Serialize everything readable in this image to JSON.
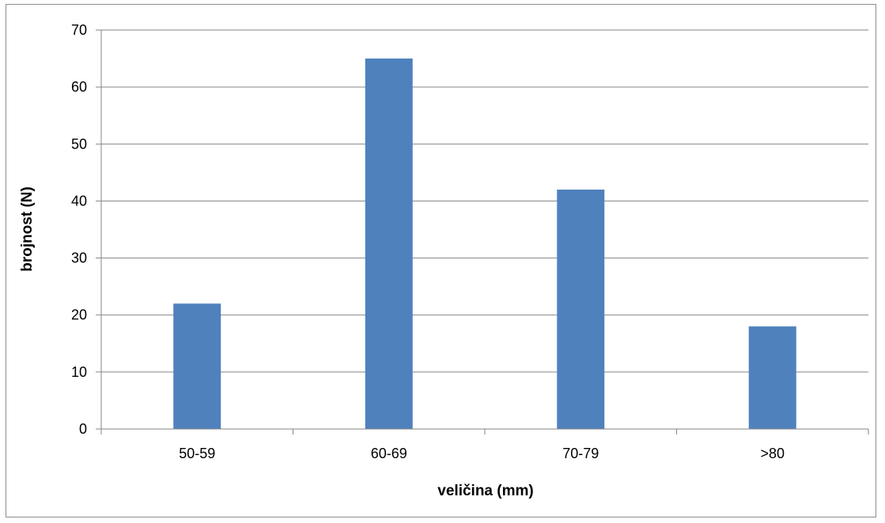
{
  "chart_data": {
    "type": "bar",
    "categories": [
      "50-59",
      "60-69",
      "70-79",
      ">80"
    ],
    "values": [
      22,
      65,
      42,
      18
    ],
    "title": "",
    "xlabel": "veličina (mm)",
    "ylabel": "brojnost (N)",
    "ylim": [
      0,
      70
    ],
    "yticks": [
      0,
      10,
      20,
      30,
      40,
      50,
      60,
      70
    ],
    "grid": true,
    "legend": "none",
    "bar_color": "#4f81bd",
    "grid_color": "#868686"
  }
}
